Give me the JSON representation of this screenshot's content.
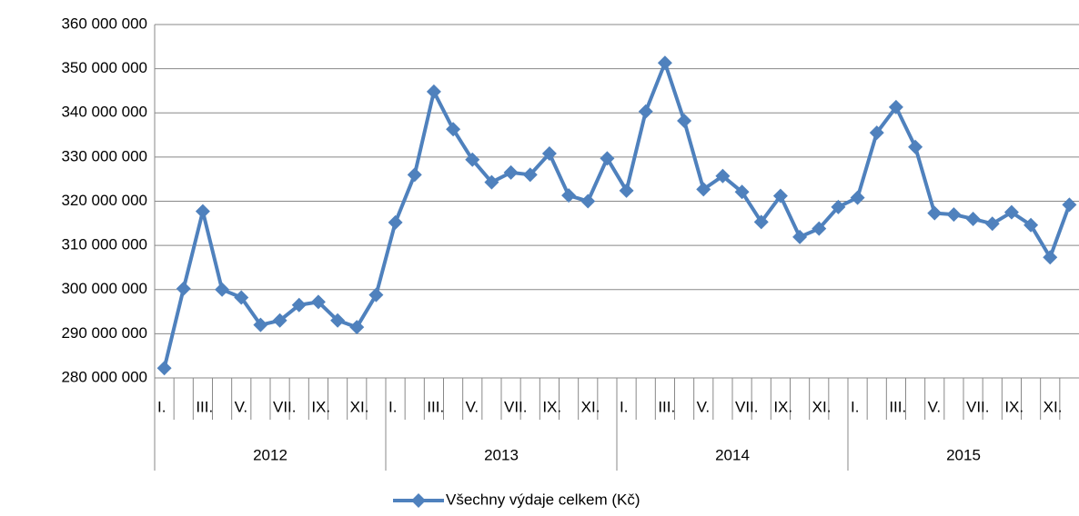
{
  "chart_data": {
    "type": "line",
    "categories": [
      "I.",
      null,
      "III.",
      null,
      "V.",
      null,
      "VII.",
      null,
      "IX.",
      null,
      "XI.",
      null,
      "I.",
      null,
      "III.",
      null,
      "V.",
      null,
      "VII.",
      null,
      "IX.",
      null,
      "XI.",
      null,
      "I.",
      null,
      "III.",
      null,
      "V.",
      null,
      "VII.",
      null,
      "IX.",
      null,
      "XI.",
      null,
      "I.",
      null,
      "III.",
      null,
      "V.",
      null,
      "VII.",
      null,
      "IX.",
      null,
      "XI.",
      null
    ],
    "category_groups": [
      "2012",
      "2013",
      "2014",
      "2015"
    ],
    "series": [
      {
        "name": "Všechny výdaje celkem (Kč)",
        "color": "#4f81bd",
        "values": [
          282200000,
          300200000,
          317700000,
          300000000,
          298200000,
          292000000,
          293000000,
          296500000,
          297200000,
          293000000,
          291500000,
          298800000,
          315200000,
          326000000,
          344800000,
          336300000,
          329400000,
          324300000,
          326500000,
          326000000,
          330800000,
          321300000,
          320000000,
          329700000,
          322400000,
          340300000,
          351300000,
          338200000,
          322700000,
          325700000,
          322100000,
          315300000,
          321200000,
          311900000,
          313800000,
          318700000,
          320800000,
          335500000,
          341300000,
          332300000,
          317300000,
          317000000,
          316000000,
          314900000,
          317500000,
          314600000,
          307300000,
          319200000
        ]
      }
    ],
    "ylim": [
      280000000,
      360000000
    ],
    "yticks": [
      {
        "value": 280000000,
        "label": "280 000 000"
      },
      {
        "value": 290000000,
        "label": "290 000 000"
      },
      {
        "value": 300000000,
        "label": "300 000 000"
      },
      {
        "value": 310000000,
        "label": "310 000 000"
      },
      {
        "value": 320000000,
        "label": "320 000 000"
      },
      {
        "value": 330000000,
        "label": "330 000 000"
      },
      {
        "value": 340000000,
        "label": "340 000 000"
      },
      {
        "value": 350000000,
        "label": "350 000 000"
      },
      {
        "value": 360000000,
        "label": "360 000 000"
      }
    ],
    "grid": true,
    "legend": "bottom"
  }
}
